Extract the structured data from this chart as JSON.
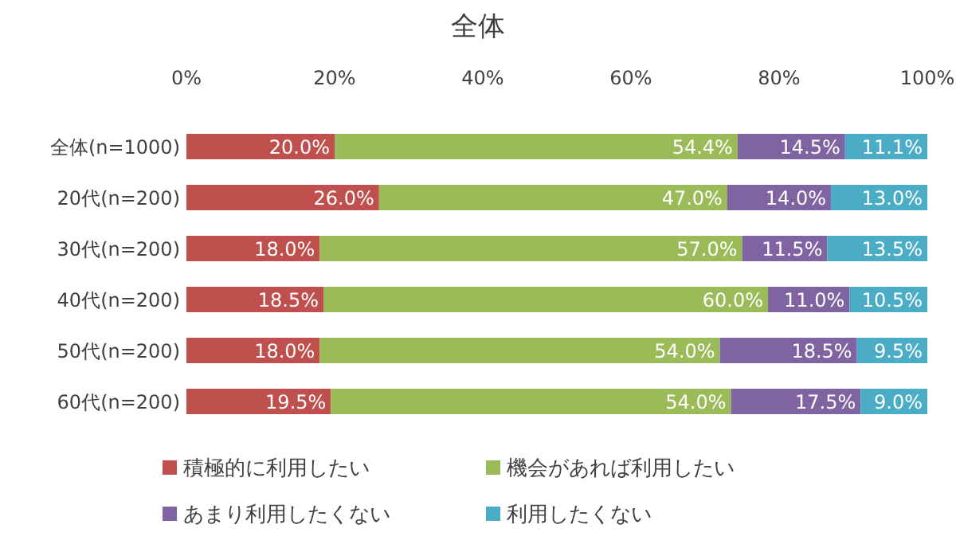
{
  "chart_data": {
    "type": "bar",
    "orientation": "horizontal",
    "stacked": true,
    "title": "全体",
    "categories": [
      "全体(n=1000)",
      "20代(n=200)",
      "30代(n=200)",
      "40代(n=200)",
      "50代(n=200)",
      "60代(n=200)"
    ],
    "xlim": [
      0,
      100
    ],
    "xticks": [
      {
        "value": 0,
        "label": "0%"
      },
      {
        "value": 20,
        "label": "20%"
      },
      {
        "value": 40,
        "label": "40%"
      },
      {
        "value": 60,
        "label": "60%"
      },
      {
        "value": 80,
        "label": "80%"
      },
      {
        "value": 100,
        "label": "100%"
      }
    ],
    "legend": "bottom",
    "grid": false,
    "series": [
      {
        "name": "積極的に利用したい",
        "color": "#c0504d",
        "values": [
          20.0,
          26.0,
          18.0,
          18.5,
          18.0,
          19.5
        ],
        "value_labels": [
          "20.0%",
          "26.0%",
          "18.0%",
          "18.5%",
          "18.0%",
          "19.5%"
        ]
      },
      {
        "name": "機会があれば利用したい",
        "color": "#9bbb59",
        "values": [
          54.4,
          47.0,
          57.0,
          60.0,
          54.0,
          54.0
        ],
        "value_labels": [
          "54.4%",
          "47.0%",
          "57.0%",
          "60.0%",
          "54.0%",
          "54.0%"
        ]
      },
      {
        "name": "あまり利用したくない",
        "color": "#8064a2",
        "values": [
          14.5,
          14.0,
          11.5,
          11.0,
          18.5,
          17.5
        ],
        "value_labels": [
          "14.5%",
          "14.0%",
          "11.5%",
          "11.0%",
          "18.5%",
          "17.5%"
        ]
      },
      {
        "name": "利用したくない",
        "color": "#4bacc6",
        "values": [
          11.1,
          13.0,
          13.5,
          10.5,
          9.5,
          9.0
        ],
        "value_labels": [
          "11.1%",
          "13.0%",
          "13.5%",
          "10.5%",
          "9.5%",
          "9.0%"
        ]
      }
    ]
  }
}
